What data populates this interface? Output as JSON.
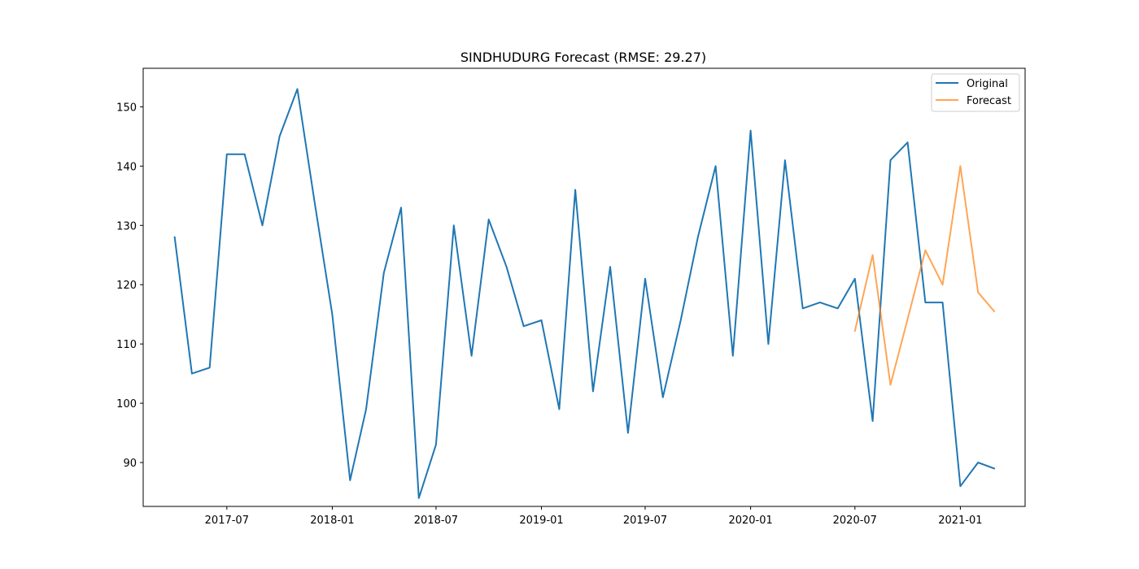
{
  "chart_data": {
    "type": "line",
    "title": "SINDHUDURG Forecast (RMSE: 29.27)",
    "xlabel": "",
    "ylabel": "",
    "x_ticks": [
      "2017-07",
      "2018-01",
      "2018-07",
      "2019-01",
      "2019-07",
      "2020-01",
      "2020-07",
      "2021-01"
    ],
    "y_ticks": [
      90,
      100,
      110,
      120,
      130,
      140,
      150
    ],
    "xlim": [
      "2017-02-05",
      "2021-04-24"
    ],
    "ylim": [
      82.6,
      156.5
    ],
    "grid": false,
    "legend_position": "top-right",
    "series": [
      {
        "name": "Original",
        "color": "#1f77b4",
        "points": [
          [
            "2017-04-01",
            128
          ],
          [
            "2017-05-01",
            105
          ],
          [
            "2017-06-01",
            106
          ],
          [
            "2017-07-01",
            142
          ],
          [
            "2017-08-01",
            142
          ],
          [
            "2017-09-01",
            130
          ],
          [
            "2017-10-01",
            145
          ],
          [
            "2017-11-01",
            153
          ],
          [
            "2017-12-01",
            134
          ],
          [
            "2018-01-01",
            115
          ],
          [
            "2018-02-01",
            87
          ],
          [
            "2018-03-01",
            99
          ],
          [
            "2018-04-01",
            122
          ],
          [
            "2018-05-01",
            133
          ],
          [
            "2018-06-01",
            84
          ],
          [
            "2018-07-01",
            93
          ],
          [
            "2018-08-01",
            130
          ],
          [
            "2018-09-01",
            108
          ],
          [
            "2018-10-01",
            131
          ],
          [
            "2018-11-01",
            123
          ],
          [
            "2018-12-01",
            113
          ],
          [
            "2019-01-01",
            114
          ],
          [
            "2019-02-01",
            99
          ],
          [
            "2019-03-01",
            136
          ],
          [
            "2019-04-01",
            102
          ],
          [
            "2019-05-01",
            123
          ],
          [
            "2019-06-01",
            95
          ],
          [
            "2019-07-01",
            121
          ],
          [
            "2019-08-01",
            101
          ],
          [
            "2019-09-01",
            114
          ],
          [
            "2019-10-01",
            128
          ],
          [
            "2019-11-01",
            140
          ],
          [
            "2019-12-01",
            108
          ],
          [
            "2020-01-01",
            146
          ],
          [
            "2020-02-01",
            110
          ],
          [
            "2020-03-01",
            141
          ],
          [
            "2020-04-01",
            116
          ],
          [
            "2020-05-01",
            117
          ],
          [
            "2020-06-01",
            116
          ],
          [
            "2020-07-01",
            121
          ],
          [
            "2020-08-01",
            97
          ],
          [
            "2020-09-01",
            141
          ],
          [
            "2020-10-01",
            144
          ],
          [
            "2020-11-01",
            117
          ],
          [
            "2020-12-01",
            117
          ],
          [
            "2021-01-01",
            86
          ],
          [
            "2021-02-01",
            90
          ],
          [
            "2021-03-01",
            89
          ]
        ]
      },
      {
        "name": "Forecast",
        "color": "#ff7f0e",
        "points": [
          [
            "2020-07-01",
            112.2
          ],
          [
            "2020-08-01",
            125
          ],
          [
            "2020-09-01",
            103.1
          ],
          [
            "2020-10-01",
            114.2
          ],
          [
            "2020-11-01",
            125.8
          ],
          [
            "2020-12-01",
            120
          ],
          [
            "2021-01-01",
            140
          ],
          [
            "2021-02-01",
            118.7
          ],
          [
            "2021-03-01",
            115.5
          ]
        ]
      }
    ]
  }
}
